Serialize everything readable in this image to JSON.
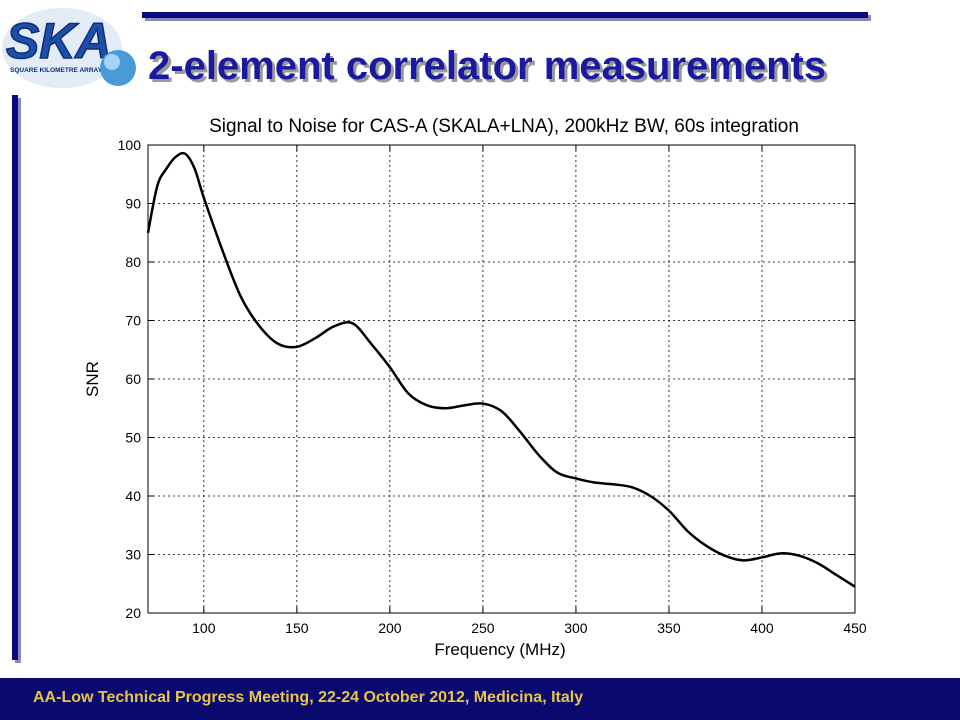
{
  "logo": {
    "text": "SKA",
    "subtext": "SQUARE KILOMETRE ARRAY"
  },
  "slide": {
    "title": "2-element correlator measurements"
  },
  "footer": {
    "text": "AA-Low Technical Progress Meeting, 22-24 October 2012, Medicina, Italy"
  },
  "colors": {
    "brand": "#1a1a9e",
    "footer_bg": "#0a0a6e",
    "footer_text": "#e8c44a"
  },
  "chart_data": {
    "type": "line",
    "title": "Signal to Noise for CAS-A (SKALA+LNA), 200kHz BW, 60s integration",
    "xlabel": "Frequency (MHz)",
    "ylabel": "SNR",
    "xlim": [
      70,
      450
    ],
    "ylim": [
      20,
      100
    ],
    "xticks": [
      100,
      150,
      200,
      250,
      300,
      350,
      400,
      450
    ],
    "yticks": [
      20,
      30,
      40,
      50,
      60,
      70,
      80,
      90,
      100
    ],
    "grid": true,
    "series": [
      {
        "x": [
          70,
          75,
          80,
          85,
          90,
          95,
          100,
          110,
          120,
          130,
          140,
          150,
          160,
          170,
          180,
          190,
          200,
          210,
          220,
          230,
          240,
          250,
          260,
          270,
          280,
          290,
          300,
          310,
          320,
          330,
          340,
          350,
          360,
          370,
          380,
          390,
          400,
          410,
          420,
          430,
          440,
          450
        ],
        "values": [
          85,
          93,
          96,
          98,
          98.5,
          96,
          91,
          82,
          74,
          69,
          66,
          65.5,
          67,
          69,
          69.5,
          66,
          62,
          57.5,
          55.5,
          55,
          55.5,
          55.8,
          54.5,
          51,
          47,
          44,
          43,
          42.3,
          42,
          41.5,
          40,
          37.5,
          34,
          31.5,
          29.8,
          29,
          29.5,
          30.2,
          29.8,
          28.5,
          26.5,
          24.5
        ]
      }
    ]
  }
}
